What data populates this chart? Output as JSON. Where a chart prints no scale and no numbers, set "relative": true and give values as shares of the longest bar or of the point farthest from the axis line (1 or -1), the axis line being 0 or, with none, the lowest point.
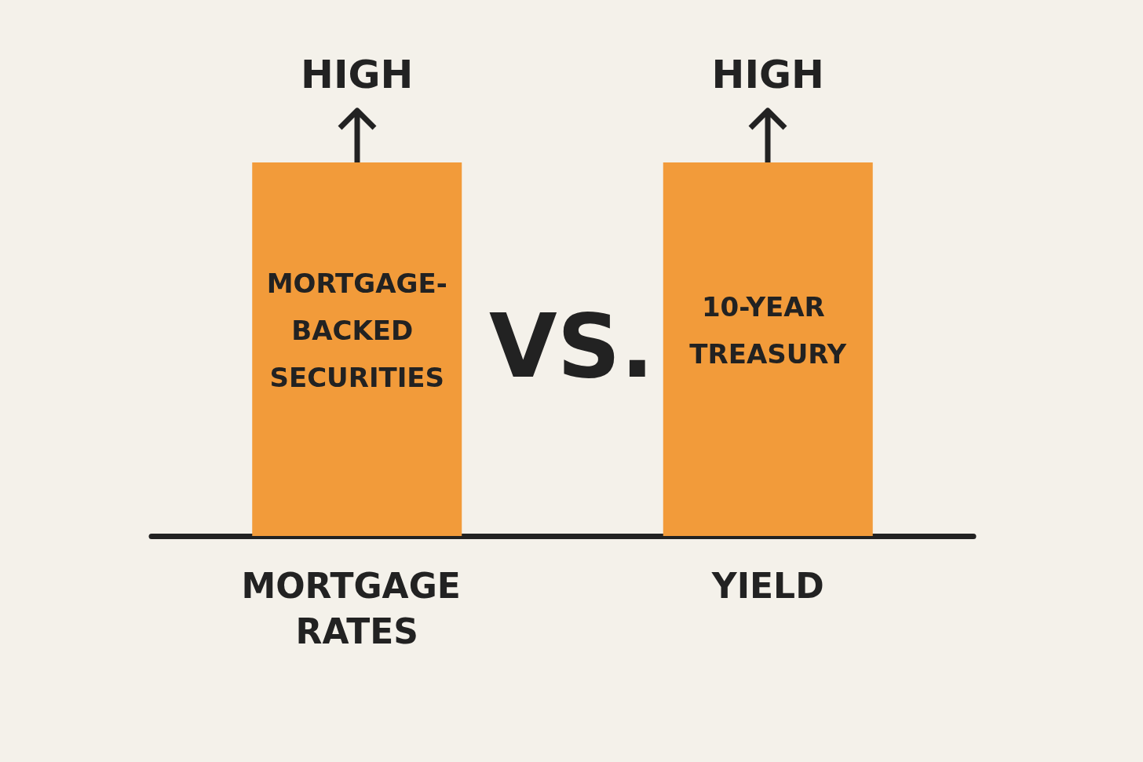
{
  "chart_data": {
    "type": "bar",
    "relative": true,
    "categories": [
      "MORTGAGE RATES",
      "YIELD"
    ],
    "values": [
      1,
      1
    ],
    "color": "#f29b3a",
    "annotations": [
      {
        "text": "HIGH",
        "x": "MORTGAGE RATES",
        "y": 1
      },
      {
        "text": "HIGH",
        "x": "YIELD",
        "y": 1
      },
      "MORTGAGE-BACKED SECURITIES",
      "10-YEAR TREASURY",
      "VS."
    ]
  }
}
